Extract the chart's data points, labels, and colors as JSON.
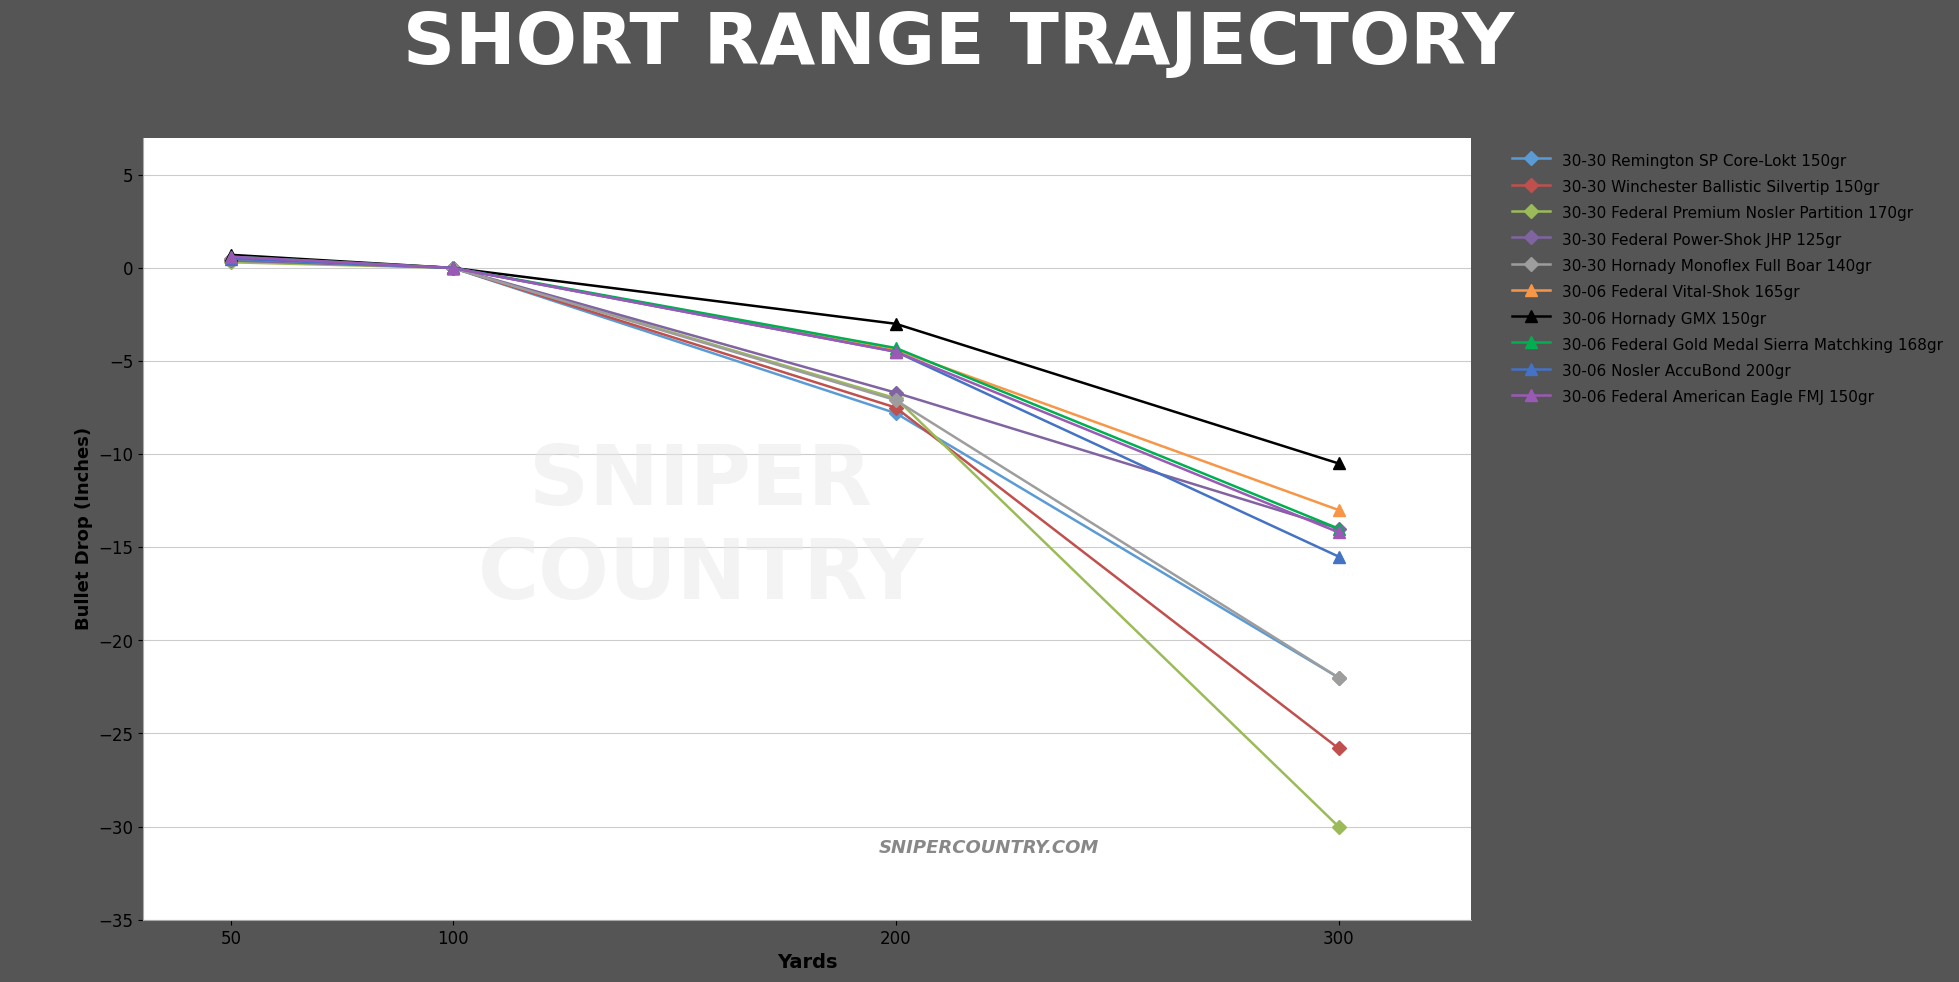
{
  "title": "SHORT RANGE TRAJECTORY",
  "xlabel": "Yards",
  "ylabel": "Bullet Drop (Inches)",
  "title_bg": "#555555",
  "separator_color": "#e8584a",
  "background_color": "#ffffff",
  "xlim": [
    30,
    330
  ],
  "ylim": [
    -35,
    7
  ],
  "yticks": [
    5,
    0,
    -5,
    -10,
    -15,
    -20,
    -25,
    -30,
    -35
  ],
  "xticks": [
    50,
    100,
    200,
    300
  ],
  "watermark": "SNIPERCOUNTRY.COM",
  "series": [
    {
      "label": "30-30 Remington SP Core-Lokt 150gr",
      "color": "#5b9bd5",
      "marker": "D",
      "markersize": 7,
      "x": [
        50,
        100,
        200,
        300
      ],
      "y": [
        0.5,
        0,
        -7.8,
        -22.0
      ]
    },
    {
      "label": "30-30 Winchester Ballistic Silvertip 150gr",
      "color": "#c0504d",
      "marker": "D",
      "markersize": 7,
      "x": [
        50,
        100,
        200,
        300
      ],
      "y": [
        0.5,
        0,
        -7.5,
        -25.8
      ]
    },
    {
      "label": "30-30 Federal Premium Nosler Partition 170gr",
      "color": "#9bbb59",
      "marker": "D",
      "markersize": 7,
      "x": [
        50,
        100,
        200,
        300
      ],
      "y": [
        0.3,
        0,
        -7.0,
        -30.0
      ]
    },
    {
      "label": "30-30 Federal Power-Shok JHP 125gr",
      "color": "#8064a2",
      "marker": "D",
      "markersize": 7,
      "x": [
        50,
        100,
        200,
        300
      ],
      "y": [
        0.4,
        0,
        -6.7,
        -14.0
      ]
    },
    {
      "label": "30-30 Hornady Monoflex Full Boar 140gr",
      "color": "#9d9d9d",
      "marker": "D",
      "markersize": 7,
      "x": [
        50,
        100,
        200,
        300
      ],
      "y": [
        0.5,
        0,
        -7.1,
        -22.0
      ]
    },
    {
      "label": "30-06 Federal Vital-Shok 165gr",
      "color": "#f79646",
      "marker": "^",
      "markersize": 9,
      "x": [
        50,
        100,
        200,
        300
      ],
      "y": [
        0.6,
        0,
        -4.4,
        -13.0
      ]
    },
    {
      "label": "30-06 Hornady GMX 150gr",
      "color": "#000000",
      "marker": "^",
      "markersize": 9,
      "x": [
        50,
        100,
        200,
        300
      ],
      "y": [
        0.7,
        0,
        -3.0,
        -10.5
      ]
    },
    {
      "label": "30-06 Federal Gold Medal Sierra Matchking 168gr",
      "color": "#00b050",
      "marker": "^",
      "markersize": 9,
      "x": [
        50,
        100,
        200,
        300
      ],
      "y": [
        0.6,
        0,
        -4.3,
        -14.0
      ]
    },
    {
      "label": "30-06 Nosler AccuBond 200gr",
      "color": "#4472c4",
      "marker": "^",
      "markersize": 9,
      "x": [
        50,
        100,
        200,
        300
      ],
      "y": [
        0.5,
        0,
        -4.5,
        -15.5
      ]
    },
    {
      "label": "30-06 Federal American Eagle FMJ 150gr",
      "color": "#9b59b6",
      "marker": "^",
      "markersize": 9,
      "x": [
        50,
        100,
        200,
        300
      ],
      "y": [
        0.6,
        0,
        -4.5,
        -14.2
      ]
    }
  ]
}
